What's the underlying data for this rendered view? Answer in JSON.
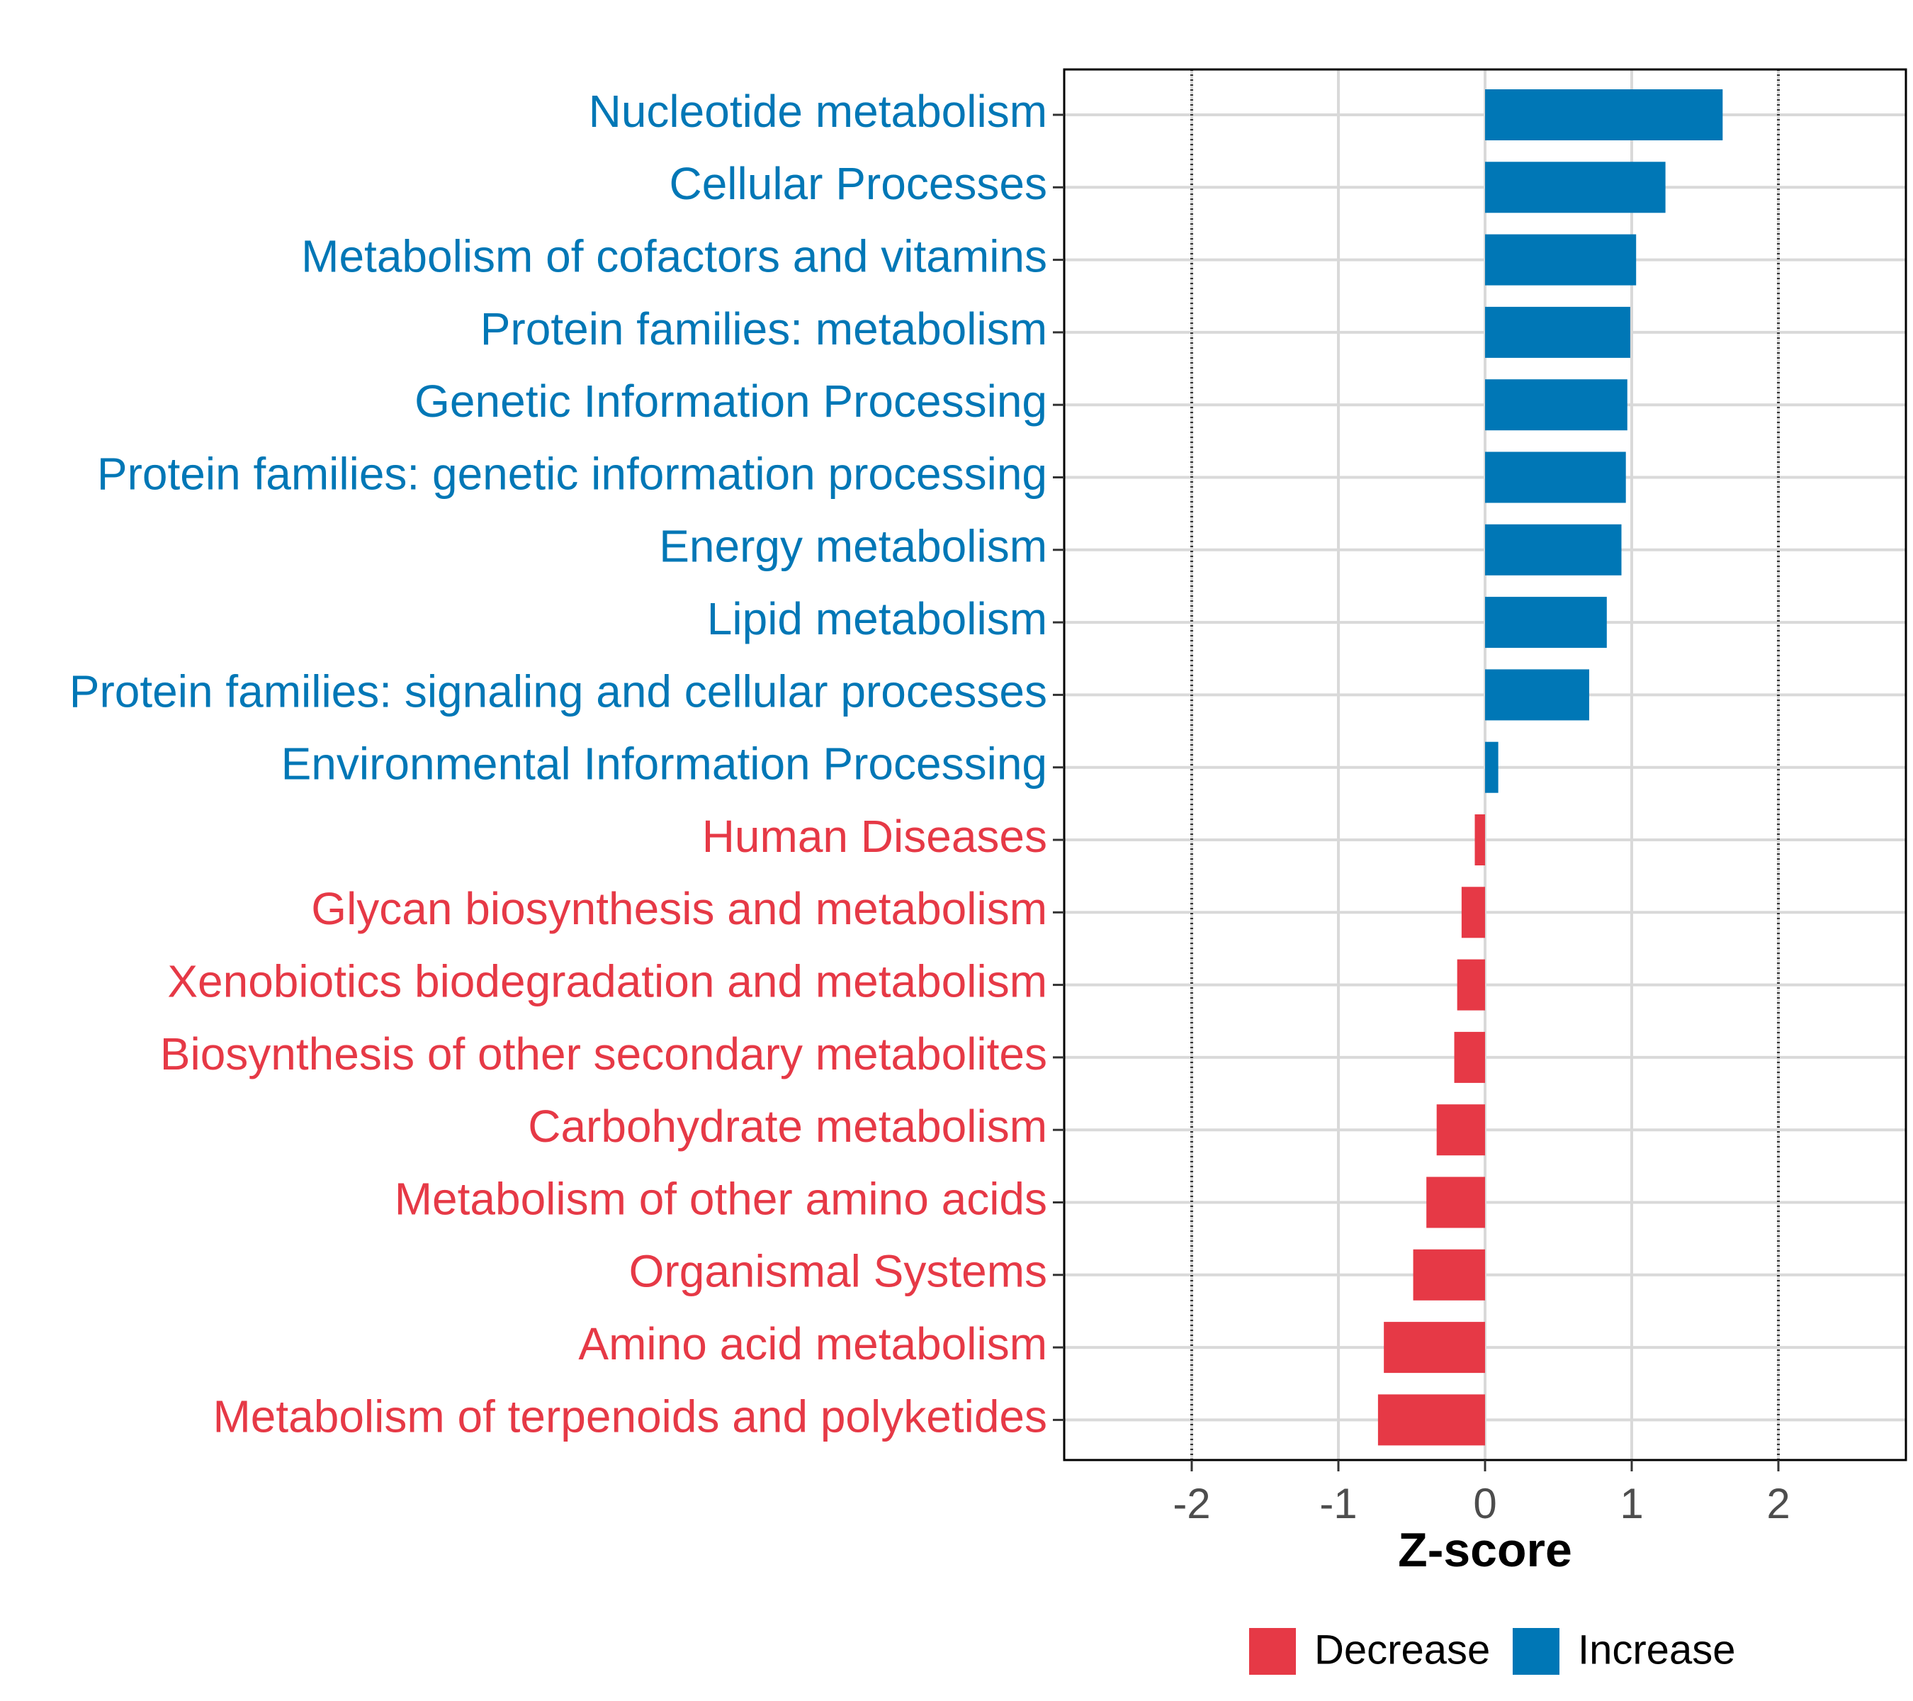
{
  "chart_data": {
    "type": "bar",
    "orientation": "horizontal",
    "title": "",
    "xlabel": "Z-score",
    "ylabel": "",
    "xlim": [
      -2.85,
      2.85
    ],
    "xticks": [
      -2,
      -1,
      0,
      1,
      2
    ],
    "xtick_labels": [
      "-2",
      "-1",
      "0",
      "1",
      "2"
    ],
    "reference_lines": [
      -2,
      2
    ],
    "grid": true,
    "categories": [
      "Nucleotide metabolism",
      "Cellular Processes",
      "Metabolism of cofactors and vitamins",
      "Protein families: metabolism",
      "Genetic Information Processing",
      "Protein families: genetic information processing",
      "Energy metabolism",
      "Lipid metabolism",
      "Protein families: signaling and cellular processes",
      "Environmental Information Processing",
      "Human Diseases",
      "Glycan biosynthesis and metabolism",
      "Xenobiotics biodegradation and metabolism",
      "Biosynthesis of other secondary metabolites",
      "Carbohydrate metabolism",
      "Metabolism of other amino acids",
      "Organismal Systems",
      "Amino acid metabolism",
      "Metabolism of terpenoids and polyketides"
    ],
    "values": [
      1.62,
      1.23,
      1.03,
      0.99,
      0.97,
      0.96,
      0.93,
      0.83,
      0.71,
      0.09,
      -0.07,
      -0.16,
      -0.19,
      -0.21,
      -0.33,
      -0.4,
      -0.49,
      -0.69,
      -0.73
    ],
    "groups": [
      "Increase",
      "Increase",
      "Increase",
      "Increase",
      "Increase",
      "Increase",
      "Increase",
      "Increase",
      "Increase",
      "Increase",
      "Decrease",
      "Decrease",
      "Decrease",
      "Decrease",
      "Decrease",
      "Decrease",
      "Decrease",
      "Decrease",
      "Decrease"
    ],
    "legend": {
      "position": "bottom",
      "entries": [
        {
          "label": "Decrease",
          "color": "#e63946"
        },
        {
          "label": "Increase",
          "color": "#0077b6"
        }
      ]
    },
    "colors": {
      "Decrease": "#e63946",
      "Increase": "#0077b6"
    }
  }
}
